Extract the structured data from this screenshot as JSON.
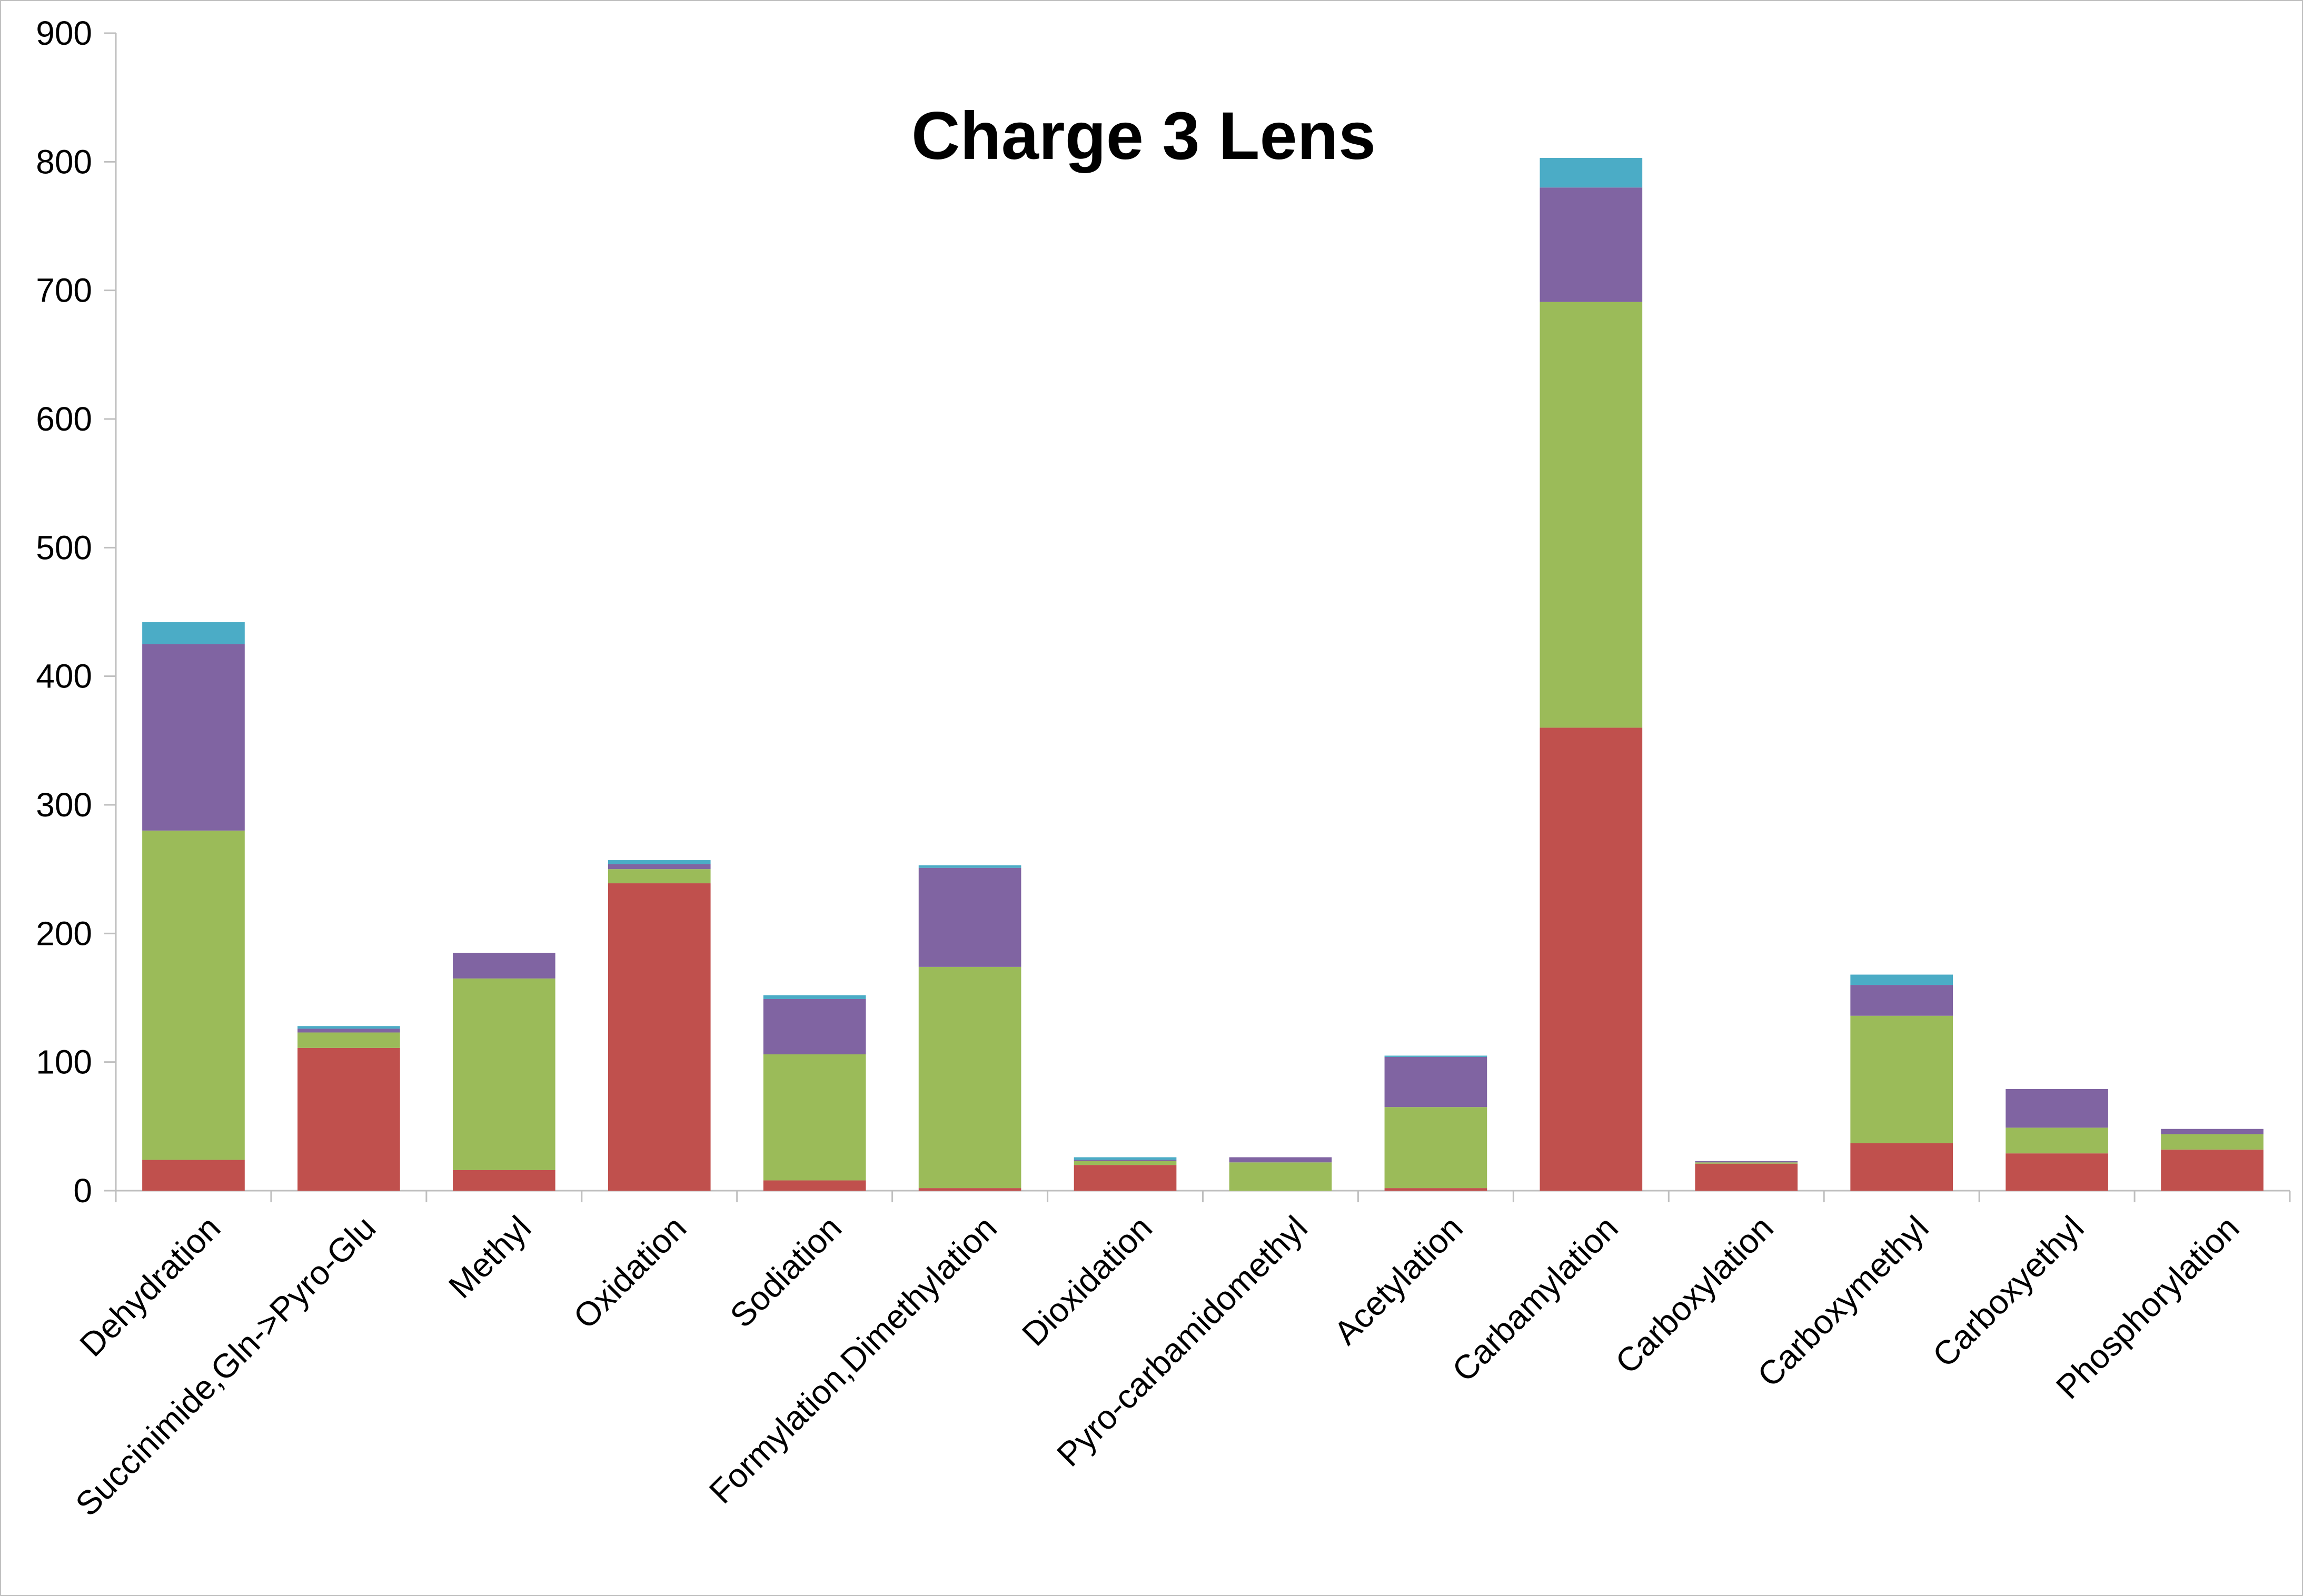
{
  "chart_data": {
    "type": "bar",
    "stacked": true,
    "title": "Charge 3 Lens",
    "xlabel": "",
    "ylabel": "",
    "ylim": [
      0,
      900
    ],
    "yticks": [
      0,
      100,
      200,
      300,
      400,
      500,
      600,
      700,
      800,
      900
    ],
    "grid": false,
    "legend": "none",
    "categories": [
      "Dehydration",
      "Succinimide,Gln->Pyro-Glu",
      "Methyl",
      "Oxidation",
      "Sodiation",
      "Formylation,Dimethylation",
      "Dioxidation",
      "Pyro-carbamidomethyl",
      "Acetylation",
      "Carbamylation",
      "Carboxylation",
      "Carboxymethyl",
      "Carboxyethyl",
      "Phosphorylation"
    ],
    "series": [
      {
        "color": "#C0504D",
        "values": [
          24,
          111,
          16,
          239,
          8,
          2,
          20,
          0,
          2,
          360,
          21,
          37,
          29,
          32
        ]
      },
      {
        "color": "#9BBB59",
        "values": [
          256,
          12,
          149,
          11,
          98,
          172,
          3,
          22,
          63,
          331,
          1,
          99,
          20,
          12
        ]
      },
      {
        "color": "#8064A2",
        "values": [
          145,
          3,
          20,
          4,
          43,
          77,
          1,
          4,
          39,
          89,
          1,
          24,
          30,
          4
        ]
      },
      {
        "color": "#4BACC6",
        "values": [
          17,
          2,
          0,
          3,
          3,
          2,
          2,
          0,
          1,
          23,
          0,
          8,
          0,
          0
        ]
      }
    ]
  }
}
